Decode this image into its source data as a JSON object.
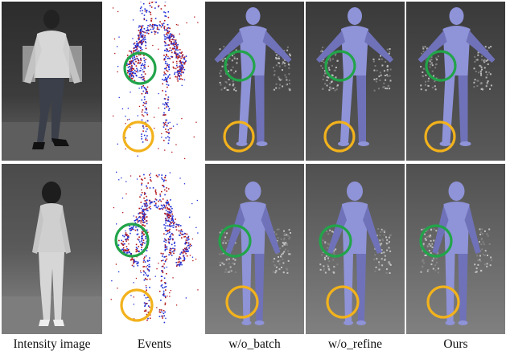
{
  "columns": [
    {
      "key": "intensity",
      "label": "Intensity image"
    },
    {
      "key": "events",
      "label": "Events"
    },
    {
      "key": "wo_batch",
      "label": "w/o_batch"
    },
    {
      "key": "wo_refine",
      "label": "w/o_refine"
    },
    {
      "key": "ours",
      "label": "Ours"
    }
  ],
  "colors": {
    "mesh": "#8f93d8",
    "mesh_shade": "#6f72b8",
    "event_positive": "#1f2fd6",
    "event_negative": "#b3171a",
    "circle_green": "#22a44a",
    "circle_orange": "#f2b21c"
  }
}
